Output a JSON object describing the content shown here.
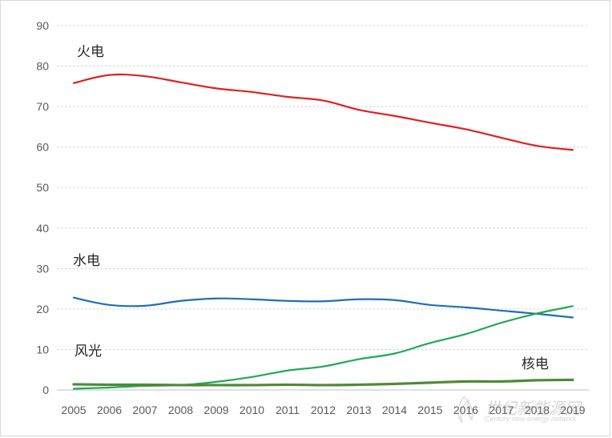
{
  "chart_data": {
    "type": "line",
    "title": "",
    "xlabel": "",
    "ylabel": "",
    "x": [
      "2005",
      "2006",
      "2007",
      "2008",
      "2009",
      "2010",
      "2011",
      "2012",
      "2013",
      "2014",
      "2015",
      "2016",
      "2017",
      "2018",
      "2019"
    ],
    "ylim": [
      0,
      90
    ],
    "yticks": [
      "0",
      "10",
      "20",
      "30",
      "40",
      "50",
      "60",
      "70",
      "80",
      "90"
    ],
    "grid": true,
    "series": [
      {
        "name": "火电",
        "color": "#e02020",
        "values": [
          75.8,
          77.8,
          77.5,
          76.0,
          74.5,
          73.6,
          72.4,
          71.5,
          69.2,
          67.7,
          66.0,
          64.4,
          62.3,
          60.3,
          59.3
        ]
      },
      {
        "name": "水电",
        "color": "#1f6fb5",
        "values": [
          22.8,
          21.0,
          20.8,
          22.0,
          22.6,
          22.4,
          22.0,
          21.9,
          22.4,
          22.2,
          21.0,
          20.4,
          19.6,
          18.8,
          17.9
        ]
      },
      {
        "name": "风光",
        "color": "#1faa55",
        "values": [
          0.3,
          0.6,
          1.0,
          1.2,
          2.0,
          3.2,
          4.8,
          5.8,
          7.6,
          9.0,
          11.6,
          13.8,
          16.6,
          18.9,
          20.7
        ]
      },
      {
        "name": "核电",
        "color": "#4f8a35",
        "values": [
          1.4,
          1.3,
          1.3,
          1.2,
          1.2,
          1.2,
          1.3,
          1.2,
          1.3,
          1.5,
          1.8,
          2.1,
          2.1,
          2.4,
          2.5
        ]
      }
    ]
  },
  "watermark": {
    "text": "世纪新能源网",
    "subtext": "Century new energy network"
  }
}
